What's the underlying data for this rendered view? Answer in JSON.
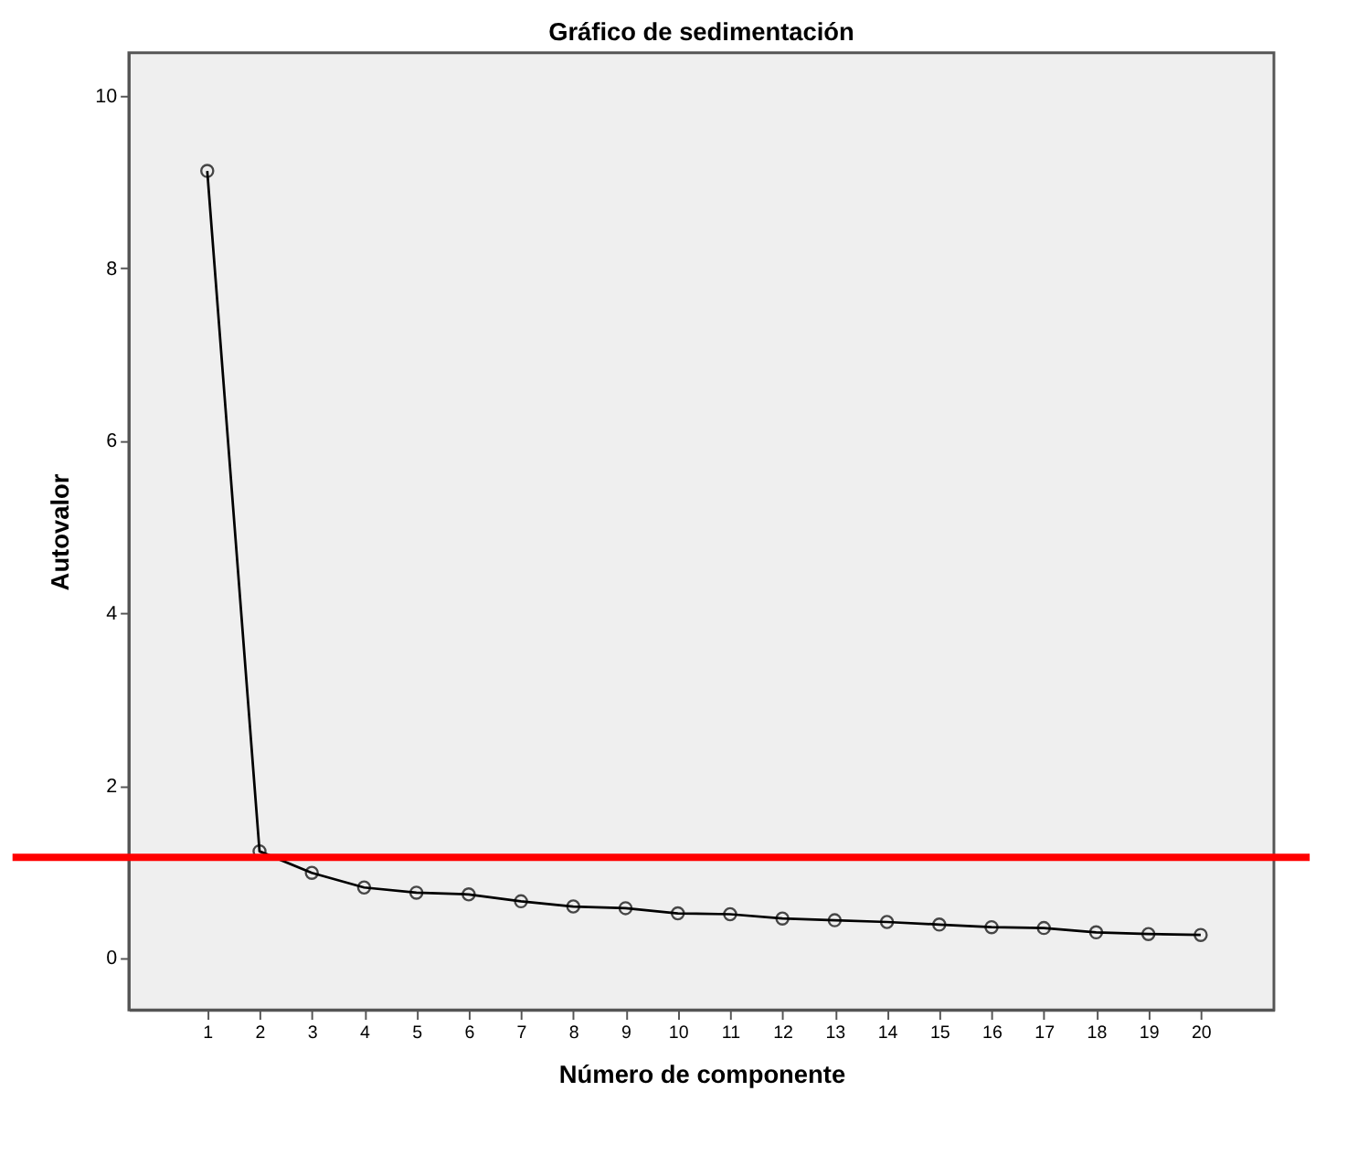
{
  "chart_data": {
    "type": "line",
    "title": "Gráfico de sedimentación",
    "xlabel": "Número de componente",
    "ylabel": "Autovalor",
    "x": [
      1,
      2,
      3,
      4,
      5,
      6,
      7,
      8,
      9,
      10,
      11,
      12,
      13,
      14,
      15,
      16,
      17,
      18,
      19,
      20
    ],
    "series": [
      {
        "color": "#000000",
        "values": [
          9.13,
          1.24,
          0.99,
          0.82,
          0.76,
          0.74,
          0.66,
          0.6,
          0.58,
          0.52,
          0.51,
          0.46,
          0.44,
          0.42,
          0.39,
          0.36,
          0.35,
          0.3,
          0.28,
          0.27
        ]
      }
    ],
    "xlim": [
      -0.5,
      21.4
    ],
    "xticks": [
      1,
      2,
      3,
      4,
      5,
      6,
      7,
      8,
      9,
      10,
      11,
      12,
      13,
      14,
      15,
      16,
      17,
      18,
      19,
      20
    ],
    "ylim": [
      -0.6,
      10.5
    ],
    "yticks": [
      0,
      2,
      4,
      6,
      8,
      10
    ],
    "ref_lines": [
      {
        "axis": "y",
        "value": 1.17,
        "color": "#ff0000",
        "line_style": "solid"
      }
    ],
    "grid": false,
    "marker": "circle",
    "line_style": "solid"
  }
}
